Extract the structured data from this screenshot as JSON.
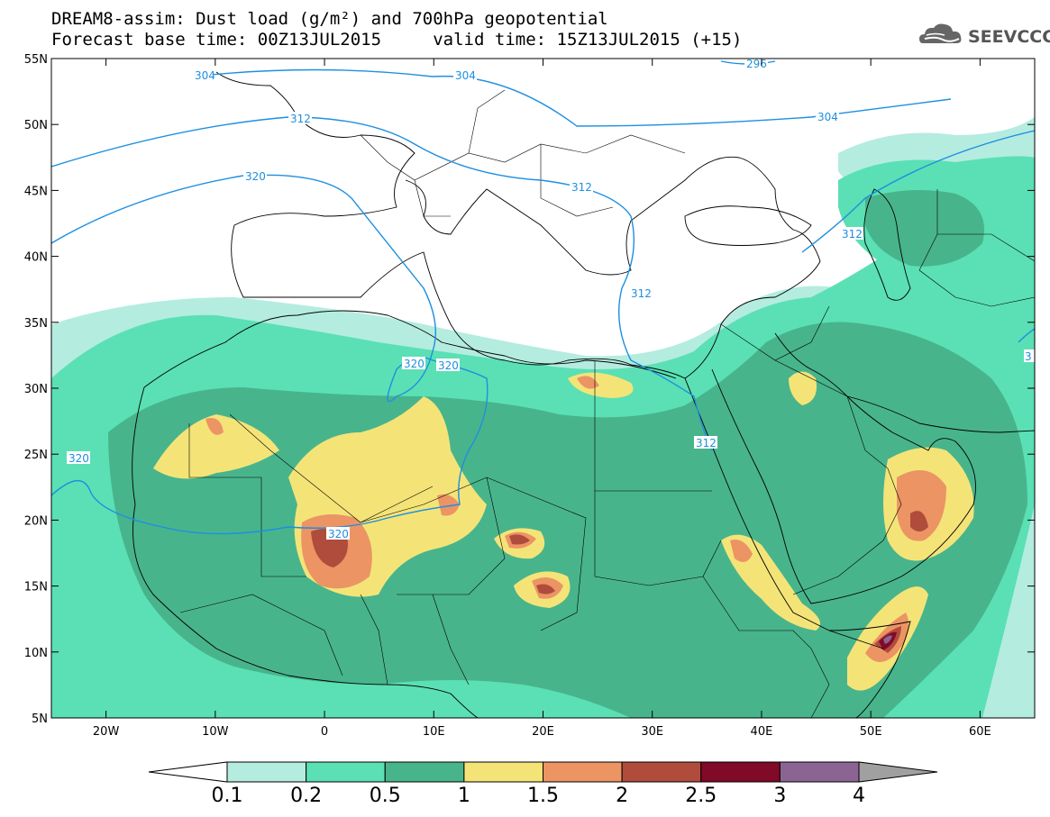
{
  "header": {
    "title_line1": "DREAM8-assim: Dust load (g/m²) and 700hPa geopotential",
    "title_line2": "Forecast base time: 00Z13JUL2015     valid time: 15Z13JUL2015 (+15)",
    "logo_text": "SEEVCCC"
  },
  "map": {
    "lon_range": [
      -25,
      65
    ],
    "lat_range": [
      5,
      55
    ],
    "lon_ticks": [
      {
        "value": -20,
        "label": "20W"
      },
      {
        "value": -10,
        "label": "10W"
      },
      {
        "value": 0,
        "label": "0"
      },
      {
        "value": 10,
        "label": "10E"
      },
      {
        "value": 20,
        "label": "20E"
      },
      {
        "value": 30,
        "label": "30E"
      },
      {
        "value": 40,
        "label": "40E"
      },
      {
        "value": 50,
        "label": "50E"
      },
      {
        "value": 60,
        "label": "60E"
      }
    ],
    "lat_ticks": [
      {
        "value": 55,
        "label": "55N"
      },
      {
        "value": 50,
        "label": "50N"
      },
      {
        "value": 45,
        "label": "45N"
      },
      {
        "value": 40,
        "label": "40N"
      },
      {
        "value": 35,
        "label": "35N"
      },
      {
        "value": 30,
        "label": "30N"
      },
      {
        "value": 25,
        "label": "25N"
      },
      {
        "value": 20,
        "label": "20N"
      },
      {
        "value": 15,
        "label": "15N"
      },
      {
        "value": 10,
        "label": "10N"
      },
      {
        "value": 5,
        "label": "5N"
      }
    ],
    "contour_color": "#1e8fe0",
    "contour_labels": [
      "304",
      "304",
      "296",
      "312",
      "304",
      "320",
      "312",
      "312",
      "312",
      "320",
      "320",
      "312",
      "320",
      "320",
      "3"
    ]
  },
  "colorbar": {
    "labels": [
      "0.1",
      "0.2",
      "0.5",
      "1",
      "1.5",
      "2",
      "2.5",
      "3",
      "4"
    ],
    "colors": [
      "#b4ece0",
      "#5ae0b4",
      "#48b48c",
      "#f4e478",
      "#ec9464",
      "#b04c3c",
      "#800a28",
      "#8c6494",
      "#a0a0a0"
    ],
    "under_color": "#ffffff"
  }
}
